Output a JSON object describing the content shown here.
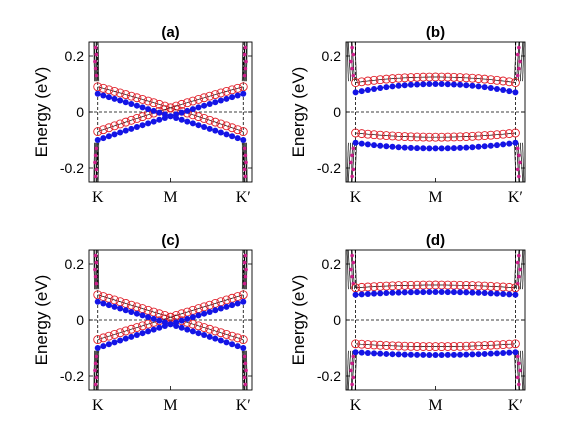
{
  "figure": {
    "colors": {
      "blue_dots": "#1414e6",
      "red_circles": "#e0202a",
      "black_curves": "#000000",
      "magenta_markers": "#cc1f8a",
      "axes": "#000000",
      "background": "#ffffff"
    }
  },
  "chart_data": [
    {
      "panel": "(a)",
      "type": "line",
      "title": "(a)",
      "ylabel": "Energy (eV)",
      "ylim": [
        -0.25,
        0.25
      ],
      "yticks": [
        "0.2",
        "0",
        "-0.2"
      ],
      "yticks_values": [
        0.2,
        0,
        -0.2
      ],
      "xticks": [
        "K",
        "M",
        "K′"
      ],
      "xticks_values": [
        0,
        0.5,
        1
      ],
      "x_range": [
        -0.06,
        1.06
      ],
      "vertical_dashed_x": [
        0,
        1
      ],
      "horizontal_dashed_y": 0,
      "series": [
        {
          "marker": "red-open-circle",
          "x": [
            0,
            0.5,
            1
          ],
          "y": [
            0.09,
            0.015,
            -0.07
          ]
        },
        {
          "marker": "red-open-circle",
          "x": [
            0,
            0.5,
            1
          ],
          "y": [
            -0.07,
            0.015,
            0.09
          ]
        },
        {
          "marker": "blue-filled-dot",
          "x": [
            0,
            0.5,
            1
          ],
          "y": [
            0.065,
            -0.015,
            -0.1
          ]
        },
        {
          "marker": "blue-filled-dot",
          "x": [
            0,
            0.5,
            1
          ],
          "y": [
            -0.1,
            -0.015,
            0.065
          ]
        }
      ]
    },
    {
      "panel": "(b)",
      "type": "line",
      "title": "(b)",
      "ylabel": "Energy (eV)",
      "ylim": [
        -0.25,
        0.25
      ],
      "yticks": [
        "0.2",
        "0",
        "-0.2"
      ],
      "yticks_values": [
        0.2,
        0,
        -0.2
      ],
      "xticks": [
        "K",
        "M",
        "K′"
      ],
      "xticks_values": [
        0,
        0.5,
        1
      ],
      "x_range": [
        -0.06,
        1.06
      ],
      "vertical_dashed_x": [
        0,
        1
      ],
      "horizontal_dashed_y": 0,
      "series": [
        {
          "marker": "red-open-circle",
          "x": [
            0,
            0.5,
            1
          ],
          "y": [
            0.105,
            0.125,
            0.105
          ]
        },
        {
          "marker": "red-open-circle",
          "x": [
            0,
            0.5,
            1
          ],
          "y": [
            -0.075,
            -0.09,
            -0.075
          ]
        },
        {
          "marker": "blue-filled-dot",
          "x": [
            0,
            0.5,
            1
          ],
          "y": [
            0.07,
            0.1,
            0.07
          ]
        },
        {
          "marker": "blue-filled-dot",
          "x": [
            0,
            0.5,
            1
          ],
          "y": [
            -0.11,
            -0.13,
            -0.11
          ]
        }
      ]
    },
    {
      "panel": "(c)",
      "type": "line",
      "title": "(c)",
      "ylabel": "Energy (eV)",
      "ylim": [
        -0.25,
        0.25
      ],
      "yticks": [
        "0.2",
        "0",
        "-0.2"
      ],
      "yticks_values": [
        0.2,
        0,
        -0.2
      ],
      "xticks": [
        "K",
        "M",
        "K′"
      ],
      "xticks_values": [
        0,
        0.5,
        1
      ],
      "x_range": [
        -0.06,
        1.06
      ],
      "vertical_dashed_x": [
        0,
        1
      ],
      "horizontal_dashed_y": 0,
      "series": [
        {
          "marker": "red-open-circle",
          "x": [
            0,
            0.5,
            1
          ],
          "y": [
            0.09,
            0.01,
            -0.07
          ]
        },
        {
          "marker": "red-open-circle",
          "x": [
            0,
            0.5,
            1
          ],
          "y": [
            -0.07,
            0.01,
            0.09
          ]
        },
        {
          "marker": "blue-filled-dot",
          "x": [
            0,
            0.5,
            1
          ],
          "y": [
            0.065,
            -0.015,
            -0.1
          ]
        },
        {
          "marker": "blue-filled-dot",
          "x": [
            0,
            0.5,
            1
          ],
          "y": [
            -0.1,
            -0.015,
            0.065
          ]
        }
      ]
    },
    {
      "panel": "(d)",
      "type": "line",
      "title": "(d)",
      "ylabel": "Energy (eV)",
      "ylim": [
        -0.25,
        0.25
      ],
      "yticks": [
        "0.2",
        "0",
        "-0.2"
      ],
      "yticks_values": [
        0.2,
        0,
        -0.2
      ],
      "xticks": [
        "K",
        "M",
        "K′"
      ],
      "xticks_values": [
        0,
        0.5,
        1
      ],
      "x_range": [
        -0.06,
        1.06
      ],
      "vertical_dashed_x": [
        0,
        1
      ],
      "horizontal_dashed_y": 0,
      "series": [
        {
          "marker": "red-open-circle",
          "x": [
            0,
            0.5,
            1
          ],
          "y": [
            0.115,
            0.125,
            0.115
          ]
        },
        {
          "marker": "red-open-circle",
          "x": [
            0,
            0.5,
            1
          ],
          "y": [
            -0.085,
            -0.095,
            -0.085
          ]
        },
        {
          "marker": "blue-filled-dot",
          "x": [
            0,
            0.5,
            1
          ],
          "y": [
            0.09,
            0.1,
            0.09
          ]
        },
        {
          "marker": "blue-filled-dot",
          "x": [
            0,
            0.5,
            1
          ],
          "y": [
            -0.115,
            -0.125,
            -0.115
          ]
        }
      ]
    }
  ]
}
